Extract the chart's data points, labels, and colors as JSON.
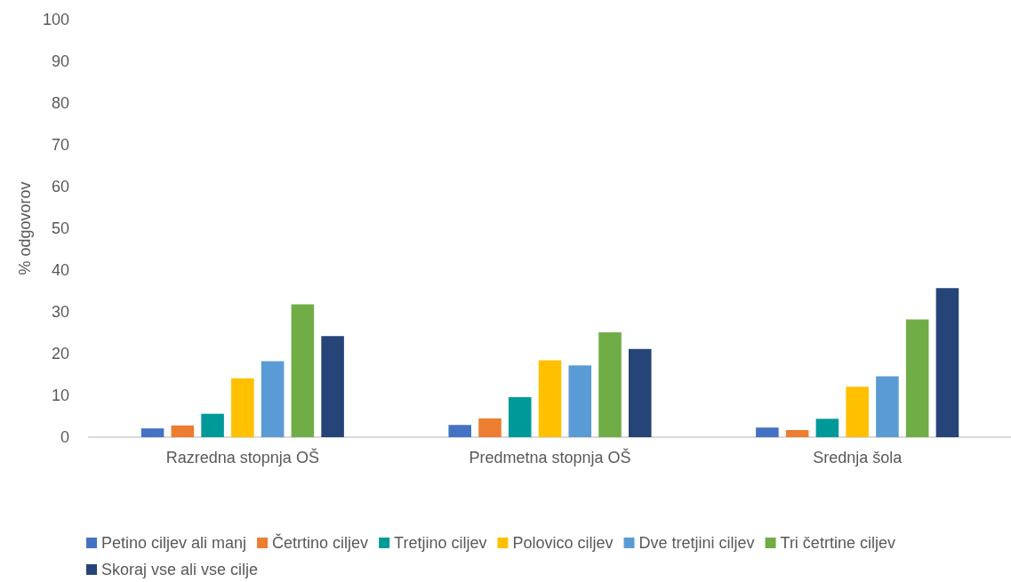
{
  "chart_data": {
    "type": "bar",
    "ylabel": "% odgovorov",
    "categories": [
      "Razredna stopnja OŠ",
      "Predmetna stopnja OŠ",
      "Srednja šola"
    ],
    "series": [
      {
        "name": "Petino ciljev ali manj",
        "color": "#4472c4",
        "values": [
          2.1,
          2.9,
          2.3
        ]
      },
      {
        "name": "Četrtino ciljev",
        "color": "#ed7d31",
        "values": [
          2.8,
          4.5,
          1.7
        ]
      },
      {
        "name": "Tretjino ciljev",
        "color": "#009999",
        "values": [
          5.6,
          9.6,
          4.4
        ]
      },
      {
        "name": "Polovico ciljev",
        "color": "#ffc000",
        "values": [
          14.1,
          18.4,
          12.1
        ]
      },
      {
        "name": "Dve tretjini ciljev",
        "color": "#5b9bd5",
        "values": [
          18.2,
          17.2,
          14.6
        ]
      },
      {
        "name": "Tri četrtine ciljev",
        "color": "#70ad47",
        "values": [
          31.8,
          25.1,
          28.2
        ]
      },
      {
        "name": "Skoraj vse ali vse cilje",
        "color": "#264478",
        "values": [
          24.2,
          21.1,
          35.7
        ]
      }
    ],
    "ylim": [
      0,
      100
    ],
    "yticks": [
      0,
      10,
      20,
      30,
      40,
      50,
      60,
      70,
      80,
      90,
      100
    ],
    "grid": false,
    "legend": "bottom"
  }
}
